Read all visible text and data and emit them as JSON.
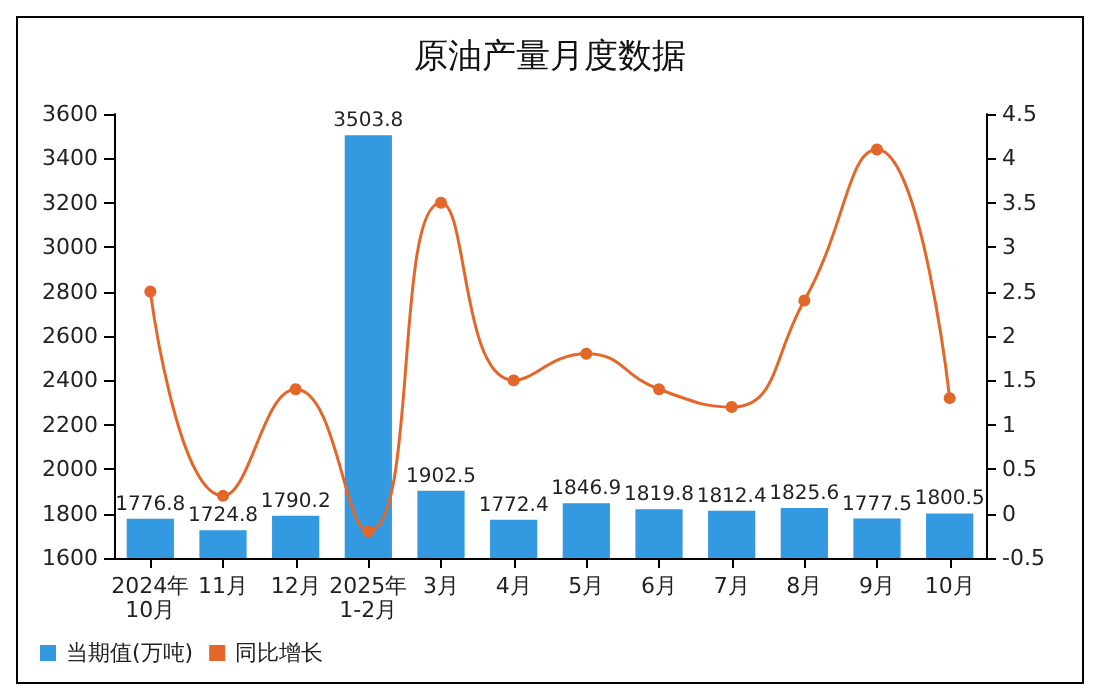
{
  "chart_data": {
    "type": "bar",
    "title": "原油产量月度数据",
    "categories": [
      "2024年\n10月",
      "11月",
      "12月",
      "2025年\n1-2月",
      "3月",
      "4月",
      "5月",
      "6月",
      "7月",
      "8月",
      "9月",
      "10月"
    ],
    "series": [
      {
        "name": "当期值(万吨)",
        "color": "#3399e0",
        "values": [
          1776.8,
          1724.8,
          1790.2,
          3503.8,
          1902.5,
          1772.4,
          1846.9,
          1819.8,
          1812.4,
          1825.6,
          1777.5,
          1800.5
        ],
        "value_labels": [
          "1776.8",
          "1724.8",
          "1790.2",
          "3503.8",
          "1902.5",
          "1772.4",
          "1846.9",
          "1819.8",
          "1812.4",
          "1825.6",
          "1777.5",
          "1800.5"
        ]
      },
      {
        "name": "同比增长",
        "type": "line",
        "axis": "y2",
        "color": "#e4672a",
        "marker": "circle",
        "values": [
          2.5,
          0.2,
          1.4,
          -0.2,
          3.5,
          1.5,
          1.8,
          1.4,
          1.2,
          2.4,
          4.1,
          1.3
        ]
      }
    ],
    "ylim": [
      1600,
      3600
    ],
    "yticks": [
      1600,
      1800,
      2000,
      2200,
      2400,
      2600,
      2800,
      3000,
      3200,
      3400,
      3600
    ],
    "y2lim": [
      -0.5,
      4.5
    ],
    "y2ticks": [
      -0.5,
      0,
      0.5,
      1,
      1.5,
      2,
      2.5,
      3,
      3.5,
      4,
      4.5
    ],
    "grid": false,
    "legend": "bottom left"
  }
}
